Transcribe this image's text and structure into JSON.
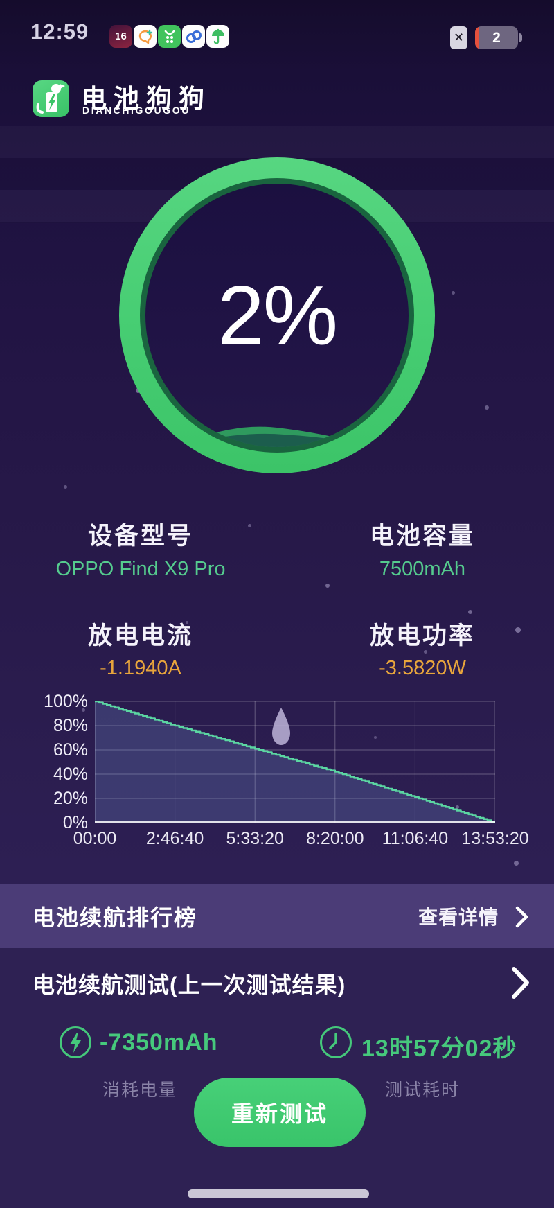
{
  "status_bar": {
    "time": "12:59",
    "notification_icons": [
      "calendar-16-icon",
      "chat-bubble-icon",
      "green-grid-app-icon",
      "blue-cloud-icon",
      "umbrella-icon"
    ],
    "calendar_badge": "16",
    "sim_status": "no-sim",
    "battery_text": "2"
  },
  "header": {
    "app_name": "电池狗狗",
    "app_name_latin": "DIANCHIGOUGOU"
  },
  "gauge": {
    "percent_label": "2%"
  },
  "info": {
    "device_model_label": "设备型号",
    "device_model": "OPPO Find X9 Pro",
    "capacity_label": "电池容量",
    "capacity": "7500mAh",
    "current_label": "放电电流",
    "current": "-1.1940A",
    "power_label": "放电功率",
    "power": "-3.5820W"
  },
  "chart_data": {
    "type": "area",
    "title": "",
    "xlabel": "",
    "ylabel": "",
    "x_ticks": [
      "00:00",
      "2:46:40",
      "5:33:20",
      "8:20:00",
      "11:06:40",
      "13:53:20"
    ],
    "y_ticks": [
      "100%",
      "80%",
      "60%",
      "40%",
      "20%",
      "0%"
    ],
    "ylim": [
      0,
      100
    ],
    "x_range_seconds": [
      0,
      50000
    ],
    "grid": true,
    "legend": "none",
    "series": [
      {
        "name": "battery_percent",
        "x_seconds": [
          0,
          10000,
          20000,
          30000,
          40000,
          50000
        ],
        "values": [
          100,
          80,
          61,
          42,
          21,
          0
        ]
      }
    ],
    "line_color": "#5bd6a2",
    "fill_color": "rgba(116,150,214,0.24)",
    "grid_color": "rgba(255,255,255,0.28)",
    "annotation_icon": "water-drop"
  },
  "ranking": {
    "title": "电池续航排行榜",
    "action": "查看详情"
  },
  "last_test": {
    "title": "电池续航测试(上一次测试结果)",
    "consumed_value": "-7350mAh",
    "consumed_label": "消耗电量",
    "duration_value": "13时57分02秒",
    "duration_label": "测试耗时",
    "retest_button": "重新测试"
  },
  "colors": {
    "accent_green": "#46c97c",
    "ring_green": "#46cd72",
    "value_green": "#55cb8e",
    "value_orange": "#e8a53c",
    "band_purple": "#4b3c77",
    "battery_low_red": "#e6503c",
    "background_top": "#150c2c",
    "background_bottom": "#2e2153"
  }
}
